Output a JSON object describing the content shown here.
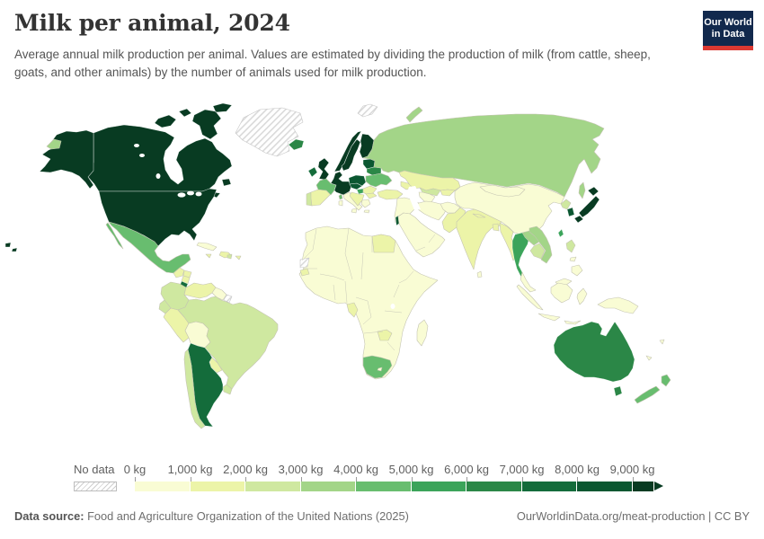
{
  "header": {
    "title": "Milk per animal, 2024",
    "subtitle": "Average annual milk production per animal. Values are estimated by dividing the production of milk (from cattle, sheep, goats, and other animals) by the number of animals used for milk production.",
    "logo": {
      "line1": "Our World",
      "line2": "in Data",
      "bg_color": "#12294d",
      "bar_color": "#dc3932"
    }
  },
  "legend": {
    "no_data_label": "No data",
    "tick_labels": [
      "0 kg",
      "1,000 kg",
      "2,000 kg",
      "3,000 kg",
      "4,000 kg",
      "5,000 kg",
      "6,000 kg",
      "7,000 kg",
      "8,000 kg",
      "9,000 kg"
    ],
    "bin_colors": [
      "#f9fcd4",
      "#ecf4a8",
      "#cfe8a0",
      "#a3d588",
      "#68bd6f",
      "#3ba45a",
      "#2b8747",
      "#146c3b",
      "#0b5731",
      "#083b22"
    ],
    "border_light": "#c4c4b2",
    "border_dark": "rgba(255,255,255,0.7)",
    "border_nodata": "#c6c6c6"
  },
  "footer": {
    "source_label": "Data source:",
    "source_text": " Food and Agriculture Organization of the United Nations (2025)",
    "link_text": "OurWorldinData.org/meat-production | CC BY"
  },
  "chart_data": {
    "type": "choropleth_map",
    "title": "Milk per animal, 2024",
    "year": 2024,
    "unit": "kg",
    "metric": "Average annual milk production per animal (kg)",
    "bin_labels": [
      "0–1,000 kg",
      "1,000–2,000 kg",
      "2,000–3,000 kg",
      "3,000–4,000 kg",
      "4,000–5,000 kg",
      "5,000–6,000 kg",
      "6,000–7,000 kg",
      "7,000–8,000 kg",
      "8,000–9,000 kg",
      "9,000+ kg"
    ],
    "country_bins": {
      "United States": 9,
      "Canada": 9,
      "Greenland": "nodata",
      "Mexico": 4,
      "Guatemala": 1,
      "Honduras": 1,
      "Nicaragua": 1,
      "Costa Rica": 7,
      "Panama": 1,
      "Cuba": 0,
      "Jamaica": 1,
      "Haiti & Dominican Republic": 1,
      "Puerto Rico": 1,
      "Trinidad and Tobago": 2,
      "Colombia": 2,
      "Venezuela": 1,
      "Guyana & Suriname": 0,
      "French Guiana": "nodata",
      "Ecuador": 2,
      "Peru": 1,
      "Bolivia": 0,
      "Brazil": 2,
      "Paraguay": 1,
      "Uruguay": 2,
      "Argentina": 7,
      "Chile": 2,
      "Iceland": 6,
      "Ireland": 7,
      "United Kingdom": 9,
      "Portugal": 2,
      "Spain": 1,
      "France": 4,
      "Corsica (France)": 4,
      "Sardinia (Italy)": 0,
      "Central Europe (Germany, Benelux, Denmark, Switzerland, Austria)": 9,
      "Italy": 0,
      "Czechia & Slovakia": 8,
      "Poland": 8,
      "Hungary": 5,
      "Western Balkans": 1,
      "Greece": 0,
      "Romania": 1,
      "Bulgaria": 1,
      "Norway": 9,
      "Sweden": 9,
      "Finland": 9,
      "Baltic states": 8,
      "Belarus": 6,
      "Ukraine": 4,
      "Turkey": 1,
      "Caucasus": 1,
      "Svalbard": "nodata",
      "Russia": 3,
      "Kazakhstan": 1,
      "Uzbekistan": 2,
      "Turkmenistan": 0,
      "Kyrgyzstan & Tajikistan": 1,
      "Iraq & Levant": 0,
      "Israel": 8,
      "Saudi Arabia & Gulf states": 0,
      "Iran": 0,
      "Afghanistan": 0,
      "Pakistan": 1,
      "India": 1,
      "Nepal": 1,
      "Bangladesh": 1,
      "Sri Lanka": 0,
      "Myanmar": 1,
      "Thailand": 5,
      "Laos": 3,
      "Vietnam": 3,
      "Cambodia": 2,
      "Malaysia": 0,
      "Indonesia": 0,
      "China": 0,
      "Mongolia": 0,
      "North Korea": 2,
      "South Korea": 8,
      "Japan": 9,
      "Taiwan": 5,
      "Philippines (Luzon)": 2,
      "Philippines (other islands)": 0,
      "Africa (most countries)": 0,
      "Egypt": 1,
      "Western Sahara": "nodata",
      "Senegal": 1,
      "Gabon & Congo": 1,
      "Zambia": 1,
      "South Africa": 4,
      "Lesotho": 0,
      "Madagascar": 0,
      "Australia": 6,
      "New Zealand": 4,
      "Papua New Guinea": 0,
      "Fiji": 0,
      "New Caledonia": 0
    }
  }
}
